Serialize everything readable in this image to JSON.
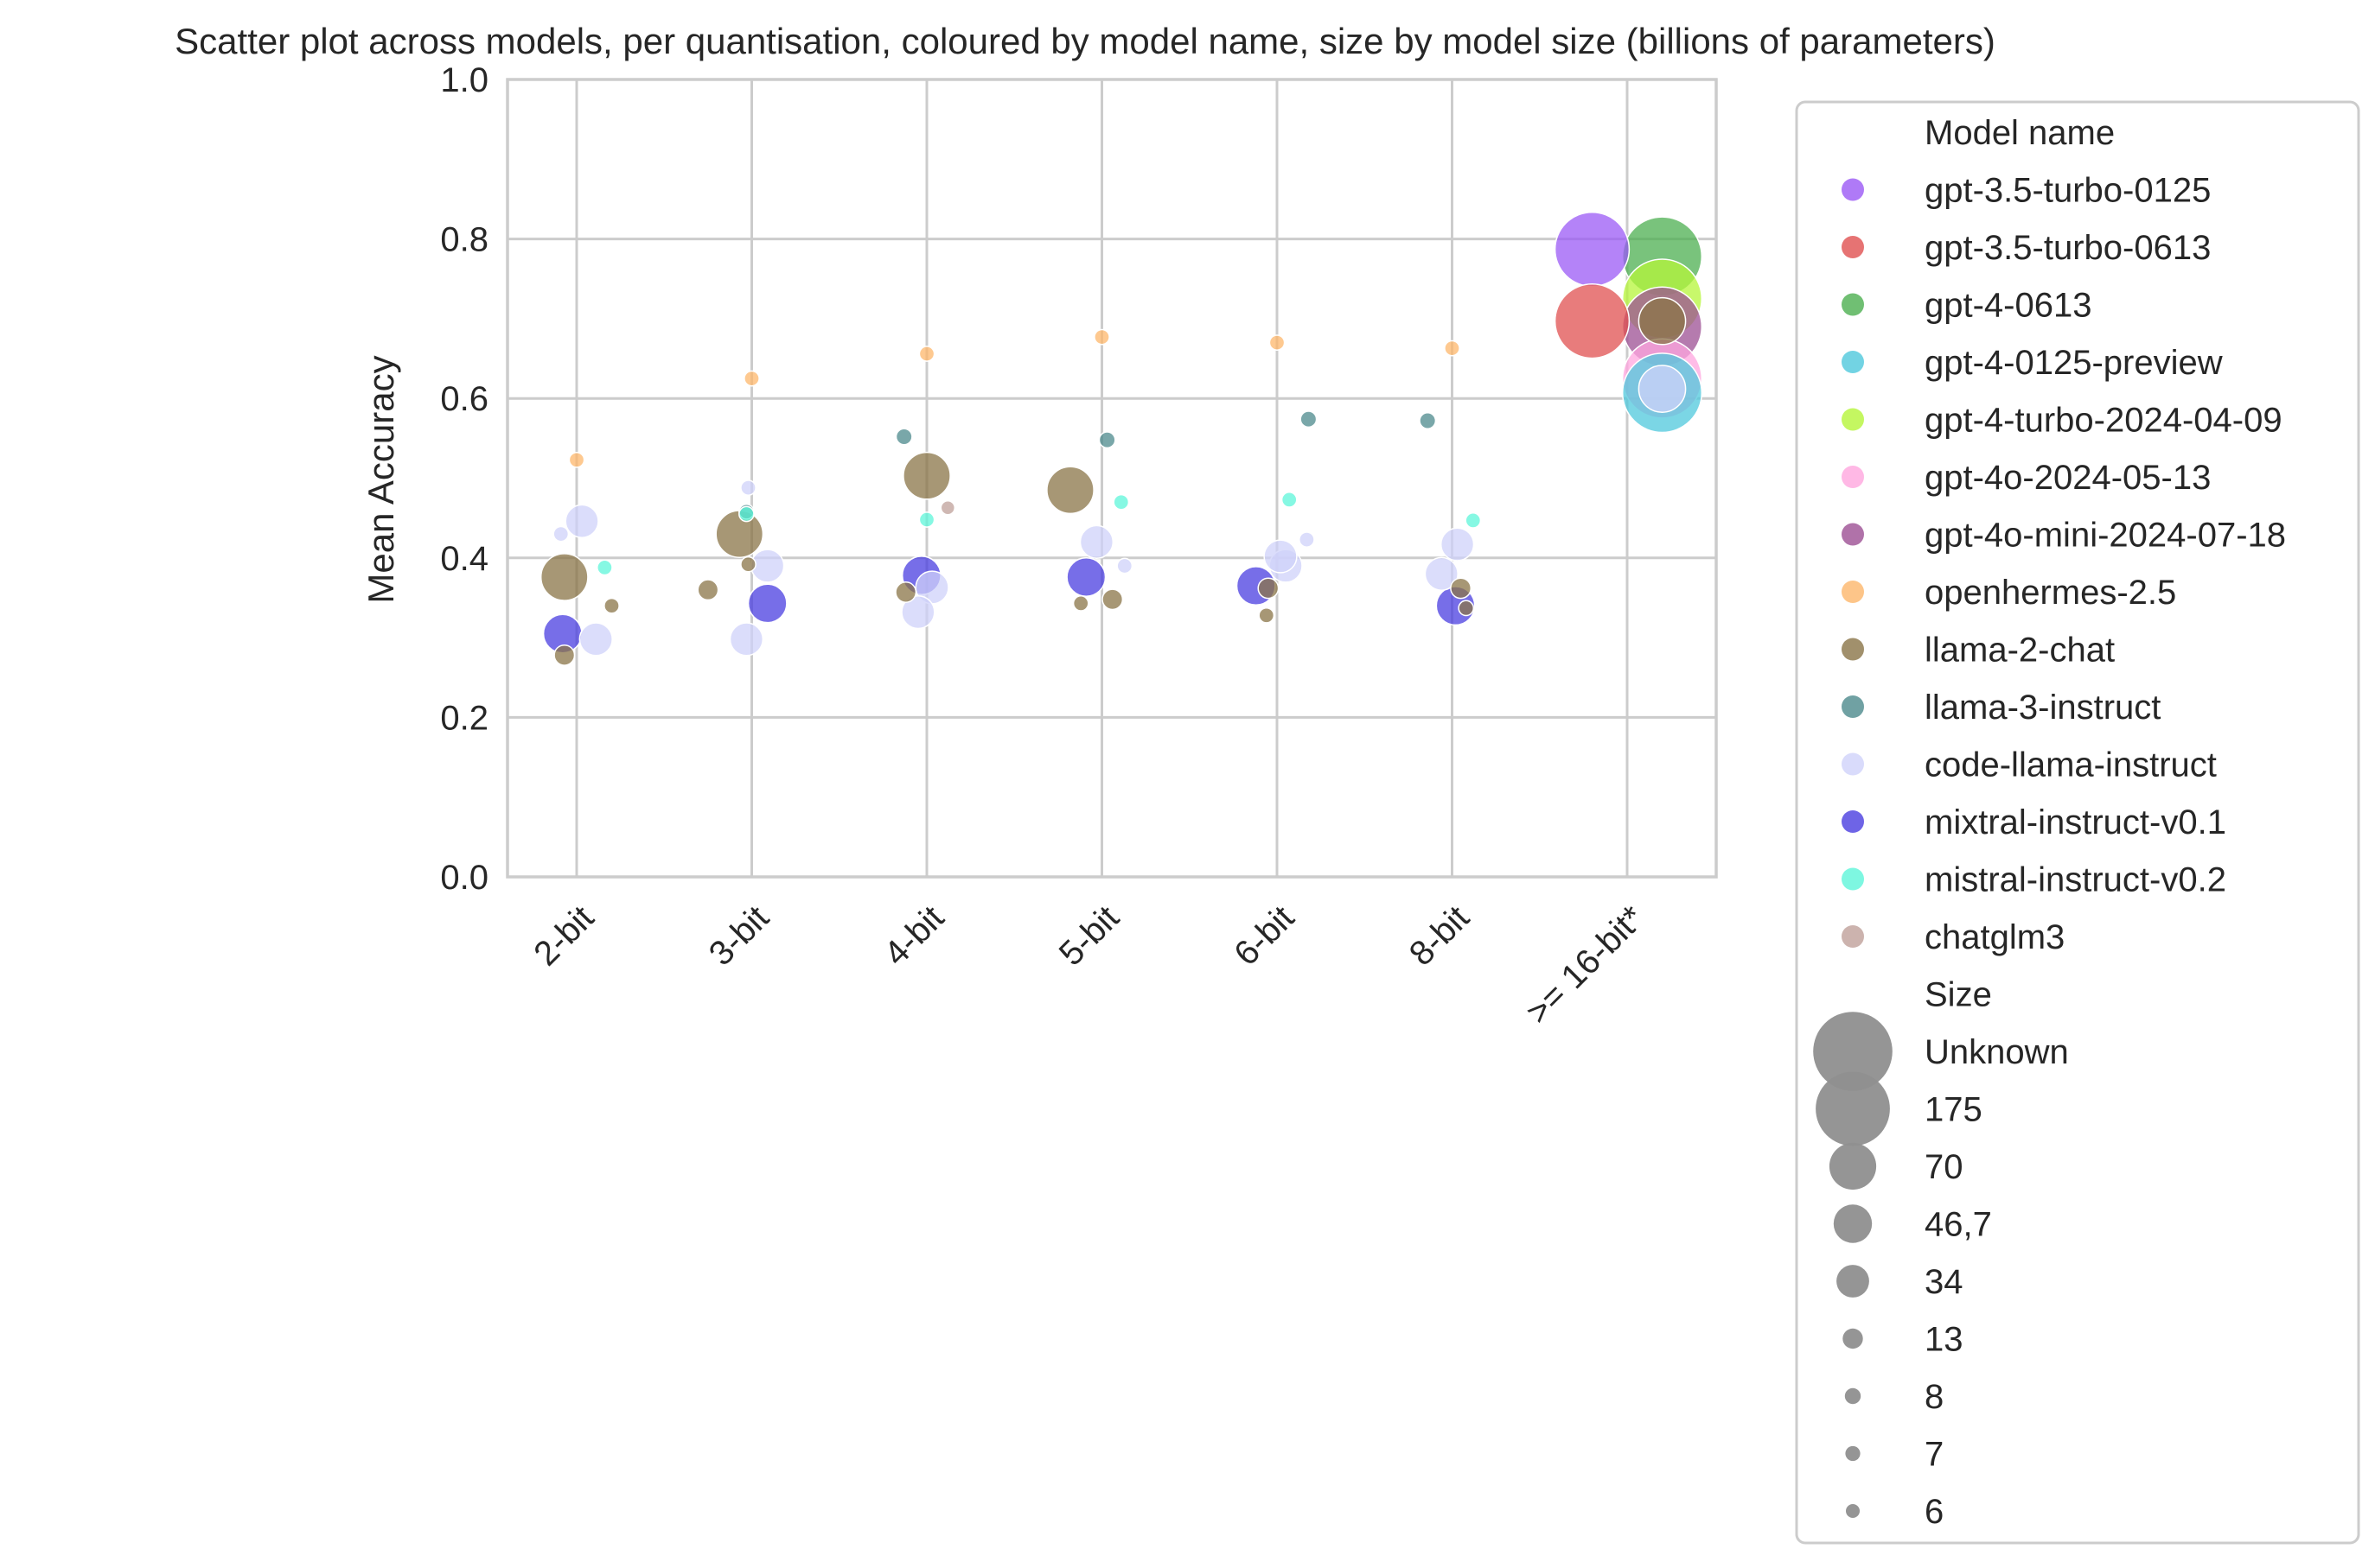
{
  "chart_data": {
    "type": "scatter",
    "title": "Scatter plot across models, per quantisation, coloured by model name, size by model size (billions of parameters)",
    "xlabel": "",
    "ylabel": "Mean Accuracy",
    "categories": [
      "2-bit",
      "3-bit",
      "4-bit",
      "5-bit",
      "6-bit",
      "8-bit",
      ">= 16-bit*"
    ],
    "ylim": [
      0,
      1.0
    ],
    "yticks": [
      "0.0",
      "0.2",
      "0.4",
      "0.6",
      "0.8",
      "1.0"
    ],
    "grid": true,
    "legend_placement": "outside-right",
    "legend": {
      "hue_title": "Model name",
      "size_title": "Size",
      "models": [
        {
          "name": "gpt-3.5-turbo-0125",
          "color": "#9b59f5"
        },
        {
          "name": "gpt-3.5-turbo-0613",
          "color": "#e05050"
        },
        {
          "name": "gpt-4-0613",
          "color": "#4caf50"
        },
        {
          "name": "gpt-4-0125-preview",
          "color": "#4fc8dc"
        },
        {
          "name": "gpt-4-turbo-2024-04-09",
          "color": "#b5f53a"
        },
        {
          "name": "gpt-4o-2024-05-13",
          "color": "#ffa6df"
        },
        {
          "name": "gpt-4o-mini-2024-07-18",
          "color": "#9c4f93"
        },
        {
          "name": "openhermes-2.5",
          "color": "#fdb76b"
        },
        {
          "name": "llama-2-chat",
          "color": "#8a7447"
        },
        {
          "name": "llama-3-instruct",
          "color": "#4c8a8c"
        },
        {
          "name": "code-llama-instruct",
          "color": "#cfd2fa"
        },
        {
          "name": "mixtral-instruct-v0.1",
          "color": "#4a3de0"
        },
        {
          "name": "mistral-instruct-v0.2",
          "color": "#5ef5d9"
        },
        {
          "name": "chatglm3",
          "color": "#bfa09a"
        }
      ],
      "sizes": [
        {
          "label": "Unknown",
          "size": 200
        },
        {
          "label": "175",
          "size": 175
        },
        {
          "label": "70",
          "size": 70
        },
        {
          "label": "46,7",
          "size": 46.7
        },
        {
          "label": "34",
          "size": 34
        },
        {
          "label": "13",
          "size": 13
        },
        {
          "label": "8",
          "size": 8
        },
        {
          "label": "7",
          "size": 7
        },
        {
          "label": "6",
          "size": 6
        }
      ]
    },
    "points": [
      {
        "model": "openhermes-2.5",
        "x": 0.0,
        "y": 0.523,
        "size": 7
      },
      {
        "model": "code-llama-instruct",
        "x": -0.09,
        "y": 0.43,
        "size": 7
      },
      {
        "model": "code-llama-instruct",
        "x": 0.03,
        "y": 0.446,
        "size": 34
      },
      {
        "model": "mistral-instruct-v0.2",
        "x": 0.16,
        "y": 0.388,
        "size": 7
      },
      {
        "model": "llama-2-chat",
        "x": -0.07,
        "y": 0.376,
        "size": 70
      },
      {
        "model": "llama-2-chat",
        "x": 0.2,
        "y": 0.34,
        "size": 7
      },
      {
        "model": "mixtral-instruct-v0.1",
        "x": -0.08,
        "y": 0.305,
        "size": 46.7
      },
      {
        "model": "code-llama-instruct",
        "x": 0.11,
        "y": 0.298,
        "size": 34
      },
      {
        "model": "llama-2-chat",
        "x": -0.07,
        "y": 0.278,
        "size": 13
      },
      {
        "model": "openhermes-2.5",
        "x": 0.0,
        "y": 0.625,
        "size": 7
      },
      {
        "model": "code-llama-instruct",
        "x": -0.02,
        "y": 0.488,
        "size": 7
      },
      {
        "model": "llama-3-instruct",
        "x": -0.03,
        "y": 0.458,
        "size": 7
      },
      {
        "model": "mistral-instruct-v0.2",
        "x": -0.03,
        "y": 0.455,
        "size": 7
      },
      {
        "model": "llama-2-chat",
        "x": -0.07,
        "y": 0.43,
        "size": 70
      },
      {
        "model": "code-llama-instruct",
        "x": 0.09,
        "y": 0.39,
        "size": 34
      },
      {
        "model": "llama-2-chat",
        "x": -0.02,
        "y": 0.392,
        "size": 7
      },
      {
        "model": "llama-2-chat",
        "x": -0.25,
        "y": 0.36,
        "size": 13
      },
      {
        "model": "mixtral-instruct-v0.1",
        "x": 0.09,
        "y": 0.343,
        "size": 46.7
      },
      {
        "model": "code-llama-instruct",
        "x": -0.03,
        "y": 0.298,
        "size": 34
      },
      {
        "model": "openhermes-2.5",
        "x": 0.0,
        "y": 0.656,
        "size": 7
      },
      {
        "model": "llama-3-instruct",
        "x": -0.13,
        "y": 0.552,
        "size": 8
      },
      {
        "model": "llama-2-chat",
        "x": 0.0,
        "y": 0.503,
        "size": 70
      },
      {
        "model": "chatglm3",
        "x": 0.12,
        "y": 0.463,
        "size": 6
      },
      {
        "model": "mistral-instruct-v0.2",
        "x": 0.0,
        "y": 0.448,
        "size": 7
      },
      {
        "model": "mixtral-instruct-v0.1",
        "x": -0.03,
        "y": 0.378,
        "size": 46.7
      },
      {
        "model": "code-llama-instruct",
        "x": 0.03,
        "y": 0.363,
        "size": 34
      },
      {
        "model": "llama-2-chat",
        "x": -0.12,
        "y": 0.357,
        "size": 13
      },
      {
        "model": "code-llama-instruct",
        "x": -0.05,
        "y": 0.332,
        "size": 34
      },
      {
        "model": "openhermes-2.5",
        "x": 0.0,
        "y": 0.677,
        "size": 7
      },
      {
        "model": "llama-3-instruct",
        "x": 0.03,
        "y": 0.548,
        "size": 8
      },
      {
        "model": "llama-2-chat",
        "x": -0.18,
        "y": 0.485,
        "size": 70
      },
      {
        "model": "mistral-instruct-v0.2",
        "x": 0.11,
        "y": 0.47,
        "size": 7
      },
      {
        "model": "code-llama-instruct",
        "x": -0.03,
        "y": 0.42,
        "size": 34
      },
      {
        "model": "code-llama-instruct",
        "x": 0.13,
        "y": 0.39,
        "size": 7
      },
      {
        "model": "mixtral-instruct-v0.1",
        "x": -0.09,
        "y": 0.376,
        "size": 46.7
      },
      {
        "model": "llama-2-chat",
        "x": 0.06,
        "y": 0.348,
        "size": 13
      },
      {
        "model": "llama-2-chat",
        "x": -0.12,
        "y": 0.343,
        "size": 7
      },
      {
        "model": "openhermes-2.5",
        "x": 0.0,
        "y": 0.67,
        "size": 7
      },
      {
        "model": "llama-3-instruct",
        "x": 0.18,
        "y": 0.574,
        "size": 8
      },
      {
        "model": "mistral-instruct-v0.2",
        "x": 0.07,
        "y": 0.473,
        "size": 7
      },
      {
        "model": "code-llama-instruct",
        "x": 0.17,
        "y": 0.423,
        "size": 7
      },
      {
        "model": "code-llama-instruct",
        "x": 0.05,
        "y": 0.39,
        "size": 34
      },
      {
        "model": "code-llama-instruct",
        "x": 0.02,
        "y": 0.402,
        "size": 34
      },
      {
        "model": "mixtral-instruct-v0.1",
        "x": -0.12,
        "y": 0.365,
        "size": 46.7
      },
      {
        "model": "llama-2-chat",
        "x": -0.05,
        "y": 0.362,
        "size": 13
      },
      {
        "model": "llama-2-chat",
        "x": -0.06,
        "y": 0.328,
        "size": 7
      },
      {
        "model": "openhermes-2.5",
        "x": 0.0,
        "y": 0.663,
        "size": 7
      },
      {
        "model": "llama-3-instruct",
        "x": -0.14,
        "y": 0.572,
        "size": 8
      },
      {
        "model": "mistral-instruct-v0.2",
        "x": 0.12,
        "y": 0.447,
        "size": 7
      },
      {
        "model": "code-llama-instruct",
        "x": 0.03,
        "y": 0.417,
        "size": 34
      },
      {
        "model": "code-llama-instruct",
        "x": -0.06,
        "y": 0.38,
        "size": 34
      },
      {
        "model": "llama-2-chat",
        "x": 0.05,
        "y": 0.362,
        "size": 13
      },
      {
        "model": "mixtral-instruct-v0.1",
        "x": 0.02,
        "y": 0.34,
        "size": 46.7
      },
      {
        "model": "llama-2-chat",
        "x": 0.08,
        "y": 0.337,
        "size": 7
      },
      {
        "model": "gpt-3.5-turbo-0125",
        "x": -0.2,
        "y": 0.787,
        "size": 175
      },
      {
        "model": "gpt-4-0613",
        "x": 0.2,
        "y": 0.778,
        "size": 200
      },
      {
        "model": "gpt-4-turbo-2024-04-09",
        "x": 0.2,
        "y": 0.725,
        "size": 200
      },
      {
        "model": "gpt-3.5-turbo-0613",
        "x": -0.2,
        "y": 0.697,
        "size": 175
      },
      {
        "model": "llama-2-chat",
        "x": 0.2,
        "y": 0.697,
        "size": 70
      },
      {
        "model": "gpt-4o-mini-2024-07-18",
        "x": 0.2,
        "y": 0.69,
        "size": 200
      },
      {
        "model": "gpt-4o-2024-05-13",
        "x": 0.2,
        "y": 0.625,
        "size": 200
      },
      {
        "model": "gpt-4-0125-preview",
        "x": 0.2,
        "y": 0.607,
        "size": 200
      },
      {
        "model": "code-llama-instruct",
        "x": 0.2,
        "y": 0.612,
        "size": 70
      }
    ]
  }
}
